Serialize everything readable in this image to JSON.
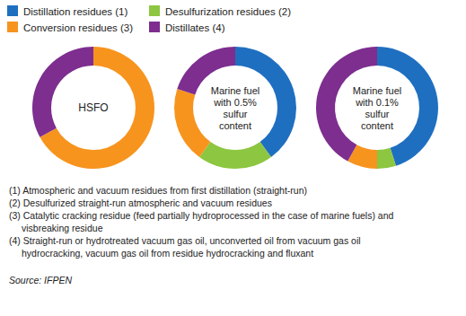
{
  "chart_data": {
    "type": "donut",
    "categories": [
      "Distillation residues (1)",
      "Desulfurization residues (2)",
      "Conversion residues (3)",
      "Distillates (4)"
    ],
    "colors": [
      "#1f6fc1",
      "#8dc640",
      "#f7941e",
      "#7d2e8f"
    ],
    "legend": "top",
    "series": [
      {
        "name": "HSFO",
        "values": [
          0,
          0,
          67,
          33
        ]
      },
      {
        "name": "Marine fuel with 0.5% sulfur content",
        "values": [
          40,
          20,
          20,
          20
        ]
      },
      {
        "name": "Marine fuel with 0.1% sulfur content",
        "values": [
          45,
          5,
          8,
          42
        ]
      }
    ],
    "notes": [
      "(1) Atmospheric and vacuum residues from first distillation (straight-run)",
      "(2) Desulfurized straight-run atmospheric and vacuum residues",
      "(3) Catalytic cracking residue (feed partially hydroprocessed in the case of marine fuels) and visbreaking residue",
      "(4) Straight-run or hydrotreated vacuum gas oil, unconverted oil from vacuum gas oil hydrocracking, vacuum gas oil from residue hydrocracking and fluxant"
    ],
    "source": "Source: IFPEN"
  }
}
